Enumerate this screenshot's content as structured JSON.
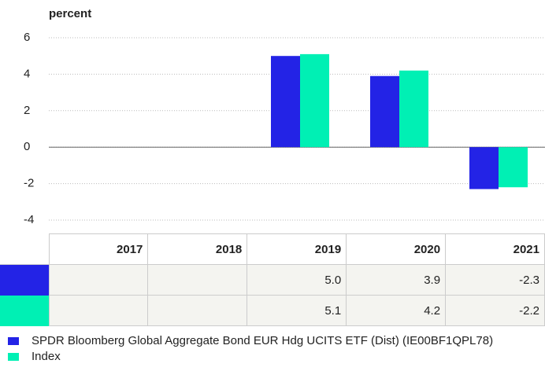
{
  "chart_data": {
    "type": "bar",
    "y_label": "percent",
    "categories": [
      "2017",
      "2018",
      "2019",
      "2020",
      "2021"
    ],
    "series": [
      {
        "name": "SPDR Bloomberg Global Aggregate Bond EUR Hdg UCITS ETF (Dist) (IE00BF1QPL78)",
        "color": "#2323e6",
        "values": [
          null,
          null,
          5.0,
          3.9,
          -2.3
        ],
        "value_labels": [
          null,
          null,
          "5.0",
          "3.9",
          "-2.3"
        ]
      },
      {
        "name": "Index",
        "color": "#00f0b4",
        "values": [
          null,
          null,
          5.1,
          4.2,
          -2.2
        ]
      }
    ],
    "ylim": [
      -4,
      6
    ],
    "yticks": [
      -4,
      -2,
      0,
      2,
      4,
      6
    ],
    "grid": true
  }
}
